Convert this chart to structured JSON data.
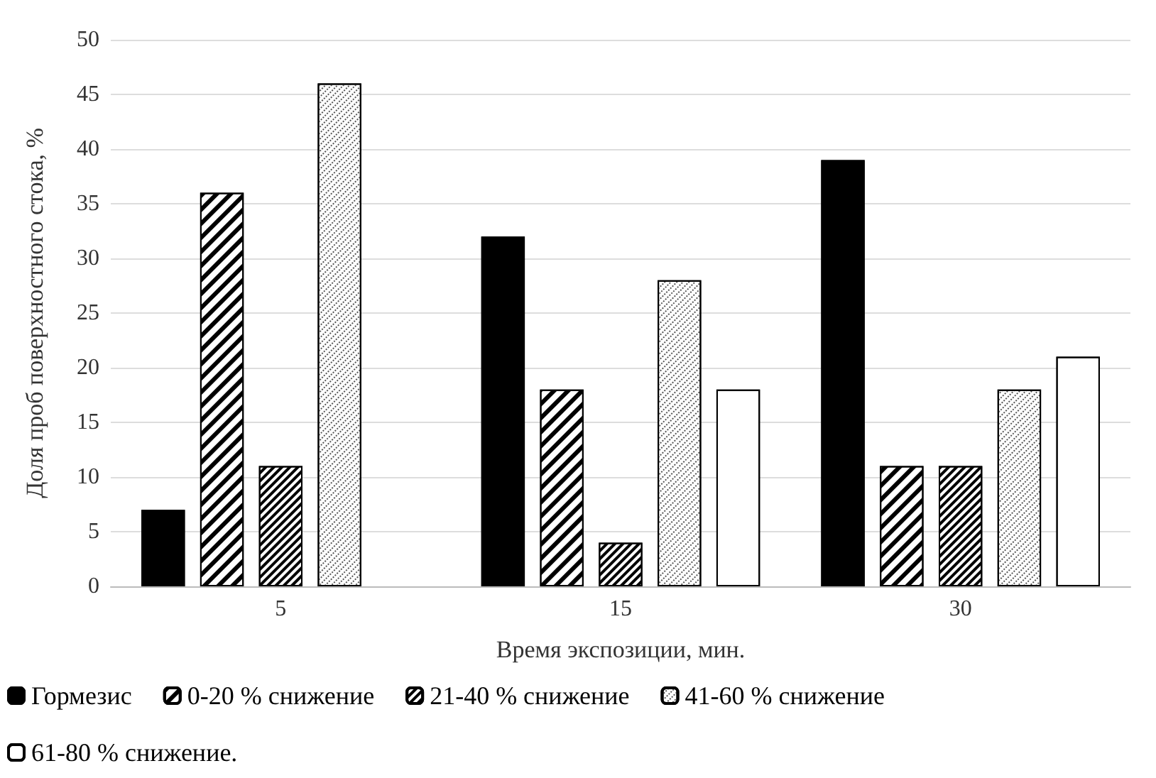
{
  "chart_data": {
    "type": "bar",
    "xlabel": "Время экспозиции, мин.",
    "ylabel": "Доля проб поверхностного стока, %",
    "categories": [
      "5",
      "15",
      "30"
    ],
    "series": [
      {
        "name": "Гормезис",
        "color": "#000000",
        "values": [
          7,
          32,
          39
        ]
      },
      {
        "name": "0-20 % снижение",
        "color": "#ffffff",
        "values": [
          36,
          18,
          11
        ]
      },
      {
        "name": "21-40 % снижение",
        "color": "#ffffff",
        "values": [
          11,
          4,
          11
        ]
      },
      {
        "name": "41-60 % снижение",
        "color": "#ffffff",
        "values": [
          46,
          28,
          18
        ]
      },
      {
        "name": "61-80 % снижение.",
        "color": "#ffffff",
        "values": [
          null,
          18,
          21
        ]
      }
    ],
    "ylim": [
      0,
      50
    ],
    "yticks": [
      0,
      5,
      10,
      15,
      20,
      25,
      30,
      35,
      40,
      45,
      50
    ],
    "grid": "y",
    "legend": "bottom"
  }
}
